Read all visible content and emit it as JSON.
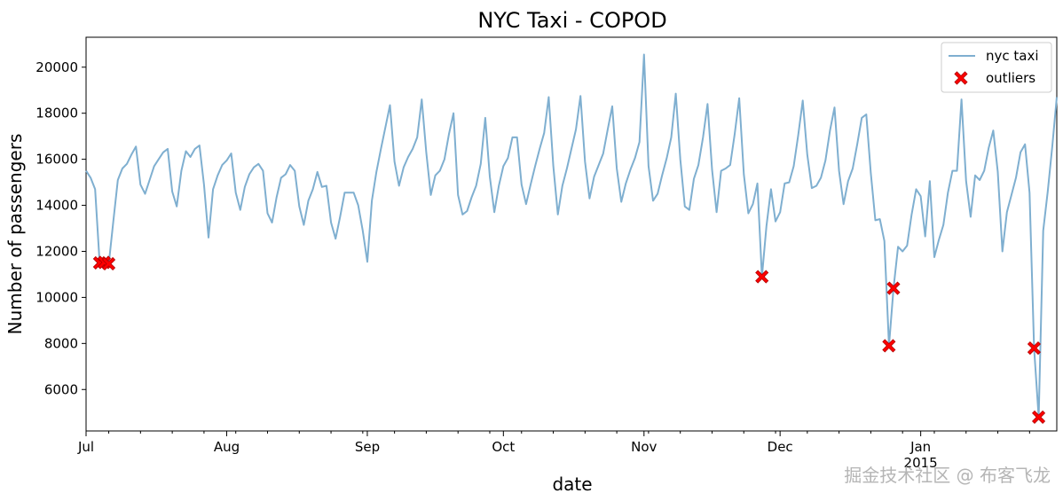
{
  "chart_data": {
    "type": "line",
    "title": "NYC Taxi - COPOD",
    "xlabel": "date",
    "ylabel": "Number of passengers",
    "x_tick_labels": [
      "Jul",
      "Aug",
      "Sep",
      "Oct",
      "Nov",
      "Dec",
      "Jan"
    ],
    "x_tick_sublabel": "2015",
    "y_ticks": [
      6000,
      8000,
      10000,
      12000,
      14000,
      16000,
      18000,
      20000
    ],
    "ylim": [
      4200,
      21300
    ],
    "xlim": [
      "2014-07-01",
      "2015-01-31"
    ],
    "grid": false,
    "legend": "top-right",
    "line_color": "#7fafd0",
    "outlier_color": "#ff0000",
    "series": [
      {
        "name": "nyc taxi",
        "x": [
          "2014-07-01",
          "2014-07-02",
          "2014-07-03",
          "2014-07-04",
          "2014-07-05",
          "2014-07-06",
          "2014-07-07",
          "2014-07-08",
          "2014-07-09",
          "2014-07-10",
          "2014-07-11",
          "2014-07-12",
          "2014-07-13",
          "2014-07-14",
          "2014-07-15",
          "2014-07-16",
          "2014-07-17",
          "2014-07-18",
          "2014-07-19",
          "2014-07-20",
          "2014-07-21",
          "2014-07-22",
          "2014-07-23",
          "2014-07-24",
          "2014-07-25",
          "2014-07-26",
          "2014-07-27",
          "2014-07-28",
          "2014-07-29",
          "2014-07-30",
          "2014-07-31",
          "2014-08-01",
          "2014-08-02",
          "2014-08-03",
          "2014-08-04",
          "2014-08-05",
          "2014-08-06",
          "2014-08-07",
          "2014-08-08",
          "2014-08-09",
          "2014-08-10",
          "2014-08-11",
          "2014-08-12",
          "2014-08-13",
          "2014-08-14",
          "2014-08-15",
          "2014-08-16",
          "2014-08-17",
          "2014-08-18",
          "2014-08-19",
          "2014-08-20",
          "2014-08-21",
          "2014-08-22",
          "2014-08-23",
          "2014-08-24",
          "2014-08-25",
          "2014-08-26",
          "2014-08-27",
          "2014-08-28",
          "2014-08-29",
          "2014-08-30",
          "2014-08-31",
          "2014-09-01",
          "2014-09-02",
          "2014-09-03",
          "2014-09-04",
          "2014-09-05",
          "2014-09-06",
          "2014-09-07",
          "2014-09-08",
          "2014-09-09",
          "2014-09-10",
          "2014-09-11",
          "2014-09-12",
          "2014-09-13",
          "2014-09-14",
          "2014-09-15",
          "2014-09-16",
          "2014-09-17",
          "2014-09-18",
          "2014-09-19",
          "2014-09-20",
          "2014-09-21",
          "2014-09-22",
          "2014-09-23",
          "2014-09-24",
          "2014-09-25",
          "2014-09-26",
          "2014-09-27",
          "2014-09-28",
          "2014-09-29",
          "2014-09-30",
          "2014-10-01",
          "2014-10-02",
          "2014-10-03",
          "2014-10-04",
          "2014-10-05",
          "2014-10-06",
          "2014-10-07",
          "2014-10-08",
          "2014-10-09",
          "2014-10-10",
          "2014-10-11",
          "2014-10-12",
          "2014-10-13",
          "2014-10-14",
          "2014-10-15",
          "2014-10-16",
          "2014-10-17",
          "2014-10-18",
          "2014-10-19",
          "2014-10-20",
          "2014-10-21",
          "2014-10-22",
          "2014-10-23",
          "2014-10-24",
          "2014-10-25",
          "2014-10-26",
          "2014-10-27",
          "2014-10-28",
          "2014-10-29",
          "2014-10-30",
          "2014-10-31",
          "2014-11-01",
          "2014-11-02",
          "2014-11-03",
          "2014-11-04",
          "2014-11-05",
          "2014-11-06",
          "2014-11-07",
          "2014-11-08",
          "2014-11-09",
          "2014-11-10",
          "2014-11-11",
          "2014-11-12",
          "2014-11-13",
          "2014-11-14",
          "2014-11-15",
          "2014-11-16",
          "2014-11-17",
          "2014-11-18",
          "2014-11-19",
          "2014-11-20",
          "2014-11-21",
          "2014-11-22",
          "2014-11-23",
          "2014-11-24",
          "2014-11-25",
          "2014-11-26",
          "2014-11-27",
          "2014-11-28",
          "2014-11-29",
          "2014-11-30",
          "2014-12-01",
          "2014-12-02",
          "2014-12-03",
          "2014-12-04",
          "2014-12-05",
          "2014-12-06",
          "2014-12-07",
          "2014-12-08",
          "2014-12-09",
          "2014-12-10",
          "2014-12-11",
          "2014-12-12",
          "2014-12-13",
          "2014-12-14",
          "2014-12-15",
          "2014-12-16",
          "2014-12-17",
          "2014-12-18",
          "2014-12-19",
          "2014-12-20",
          "2014-12-21",
          "2014-12-22",
          "2014-12-23",
          "2014-12-24",
          "2014-12-25",
          "2014-12-26",
          "2014-12-27",
          "2014-12-28",
          "2014-12-29",
          "2014-12-30",
          "2014-12-31",
          "2015-01-01",
          "2015-01-02",
          "2015-01-03",
          "2015-01-04",
          "2015-01-05",
          "2015-01-06",
          "2015-01-07",
          "2015-01-08",
          "2015-01-09",
          "2015-01-10",
          "2015-01-11",
          "2015-01-12",
          "2015-01-13",
          "2015-01-14",
          "2015-01-15",
          "2015-01-16",
          "2015-01-17",
          "2015-01-18",
          "2015-01-19",
          "2015-01-20",
          "2015-01-21",
          "2015-01-22",
          "2015-01-23",
          "2015-01-24",
          "2015-01-25",
          "2015-01-26",
          "2015-01-27",
          "2015-01-28",
          "2015-01-29",
          "2015-01-30",
          "2015-01-31"
        ],
        "values": [
          15500,
          15200,
          14700,
          11500,
          11520,
          11460,
          13300,
          15100,
          15600,
          15800,
          16200,
          16550,
          14900,
          14500,
          15100,
          15700,
          16000,
          16300,
          16450,
          14600,
          13950,
          15500,
          16350,
          16100,
          16450,
          16600,
          14900,
          12600,
          14700,
          15300,
          15750,
          15950,
          16250,
          14550,
          13800,
          14800,
          15350,
          15650,
          15800,
          15500,
          13650,
          13250,
          14350,
          15200,
          15350,
          15750,
          15500,
          13950,
          13150,
          14200,
          14700,
          15450,
          14800,
          14850,
          13250,
          12550,
          13500,
          14550,
          14550,
          14550,
          14000,
          12900,
          11550,
          14200,
          15450,
          16450,
          17400,
          18350,
          15900,
          14850,
          15650,
          16100,
          16450,
          16950,
          18600,
          16300,
          14450,
          15300,
          15500,
          16000,
          17100,
          18000,
          14450,
          13600,
          13750,
          14350,
          14850,
          15800,
          17800,
          15250,
          13700,
          14850,
          15700,
          16050,
          16950,
          16950,
          14900,
          14050,
          14900,
          15700,
          16450,
          17150,
          18700,
          15700,
          13600,
          14850,
          15600,
          16450,
          17300,
          18750,
          15900,
          14300,
          15250,
          15750,
          16250,
          17300,
          18300,
          15600,
          14150,
          14950,
          15550,
          16050,
          16750,
          20550,
          15700,
          14200,
          14500,
          15300,
          16050,
          16950,
          18850,
          16000,
          13950,
          13800,
          15150,
          15750,
          16950,
          18400,
          15550,
          13700,
          15500,
          15600,
          15750,
          17100,
          18650,
          15350,
          13650,
          14050,
          14950,
          10900,
          13100,
          14700,
          13300,
          13700,
          14950,
          15000,
          15700,
          17050,
          18550,
          16200,
          14750,
          14850,
          15200,
          15950,
          17250,
          18250,
          15500,
          14050,
          15050,
          15600,
          16650,
          17800,
          17950,
          15400,
          13350,
          13400,
          12450,
          7900,
          10400,
          12200,
          12000,
          12250,
          13600,
          14700,
          14400,
          12650,
          15050,
          11750,
          12500,
          13150,
          14550,
          15500,
          15500,
          18600,
          15050,
          13500,
          15300,
          15100,
          15500,
          16500,
          17250,
          15450,
          12000,
          13700,
          14450,
          15200,
          16300,
          16650,
          14550,
          7800,
          4800,
          12900,
          14600,
          16550,
          18700
        ]
      }
    ],
    "outliers": {
      "name": "outliers",
      "x": [
        "2014-07-04",
        "2014-07-05",
        "2014-07-06",
        "2014-11-27",
        "2014-12-25",
        "2014-12-26",
        "2015-01-26",
        "2015-01-27"
      ],
      "values": [
        11500,
        11520,
        11460,
        10900,
        7900,
        10400,
        7800,
        4800
      ]
    }
  },
  "watermark": "掘金技术社区 @ 布客飞龙"
}
